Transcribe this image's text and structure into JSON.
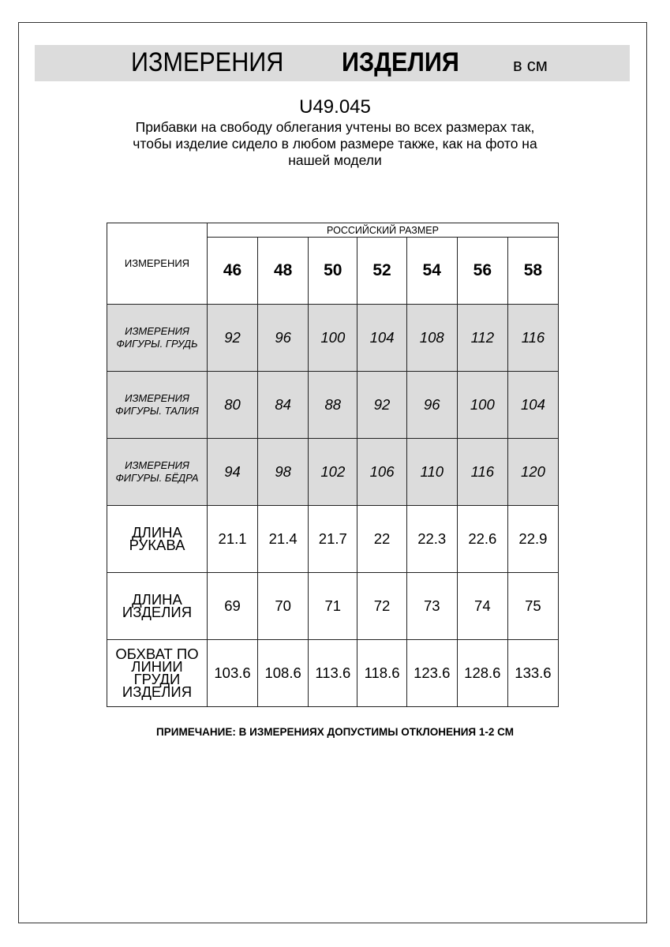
{
  "header": {
    "title_regular": "ИЗМЕРЕНИЯ",
    "title_bold": "ИЗДЕЛИЯ",
    "unit": "в см"
  },
  "article_code": "U49.045",
  "description": [
    "Прибавки на свободу облегания учтены во всех размерах так,",
    "чтобы изделие сидело в любом размере также, как на фото на",
    "нашей модели"
  ],
  "table": {
    "corner_label": "ИЗМЕРЕНИЯ",
    "group_header": "РОССИЙСКИЙ РАЗМЕР",
    "sizes": [
      "46",
      "48",
      "50",
      "52",
      "54",
      "56",
      "58"
    ],
    "rows": [
      {
        "label": [
          "ИЗМЕРЕНИЯ",
          "ФИГУРЫ. ГРУДЬ"
        ],
        "shaded": true,
        "values": [
          "92",
          "96",
          "100",
          "104",
          "108",
          "112",
          "116"
        ]
      },
      {
        "label": [
          "ИЗМЕРЕНИЯ",
          "ФИГУРЫ. ТАЛИЯ"
        ],
        "shaded": true,
        "values": [
          "80",
          "84",
          "88",
          "92",
          "96",
          "100",
          "104"
        ]
      },
      {
        "label": [
          "ИЗМЕРЕНИЯ",
          "ФИГУРЫ. БЁДРА"
        ],
        "shaded": true,
        "values": [
          "94",
          "98",
          "102",
          "106",
          "110",
          "116",
          "120"
        ]
      },
      {
        "label": [
          "ДЛИНА РУКАВА"
        ],
        "shaded": false,
        "values": [
          "21.1",
          "21.4",
          "21.7",
          "22",
          "22.3",
          "22.6",
          "22.9"
        ]
      },
      {
        "label": [
          "ДЛИНА ИЗДЕЛИЯ"
        ],
        "shaded": false,
        "values": [
          "69",
          "70",
          "71",
          "72",
          "73",
          "74",
          "75"
        ]
      },
      {
        "label": [
          "ОБХВАТ ПО",
          "ЛИНИИ ГРУДИ",
          "ИЗДЕЛИЯ"
        ],
        "shaded": false,
        "values": [
          "103.6",
          "108.6",
          "113.6",
          "118.6",
          "123.6",
          "128.6",
          "133.6"
        ]
      }
    ]
  },
  "note": "ПРИМЕЧАНИЕ: В ИЗМЕРЕНИЯХ ДОПУСТИМЫ ОТКЛОНЕНИЯ 1-2 СМ",
  "colors": {
    "band": "#dcdcdc",
    "shaded_row": "#dcdcdc"
  }
}
